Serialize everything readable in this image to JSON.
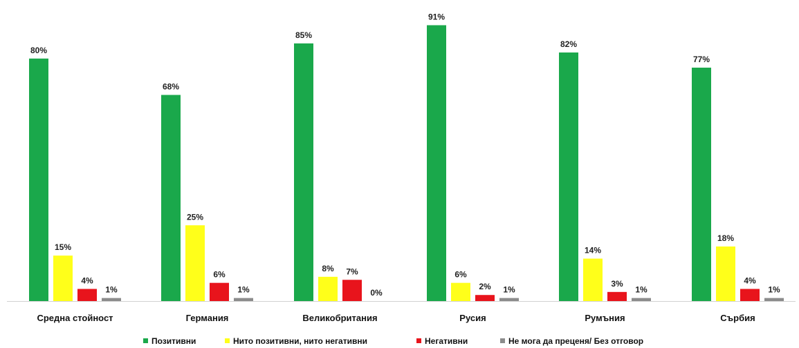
{
  "chart_data": {
    "type": "bar",
    "categories": [
      "Средна стойност",
      "Германия",
      "Великобритания",
      "Русия",
      "Румъния",
      "Сърбия"
    ],
    "series": [
      {
        "name": "Позитивни",
        "color": "#1aa84b",
        "values": [
          80,
          68,
          85,
          91,
          82,
          77
        ]
      },
      {
        "name": "Нито позитивни, нито негативни",
        "color": "#ffff1a",
        "values": [
          15,
          25,
          8,
          6,
          14,
          18
        ]
      },
      {
        "name": "Негативни",
        "color": "#e8141c",
        "values": [
          4,
          6,
          7,
          2,
          3,
          4
        ]
      },
      {
        "name": "Не мога да преценя/ Без отговор",
        "color": "#8c8c8c",
        "values": [
          1,
          1,
          0,
          1,
          1,
          1
        ]
      }
    ],
    "value_suffix": "%",
    "ylim": [
      0,
      100
    ],
    "grid": false,
    "legend_position": "bottom",
    "title": "",
    "xlabel": "",
    "ylabel": ""
  }
}
